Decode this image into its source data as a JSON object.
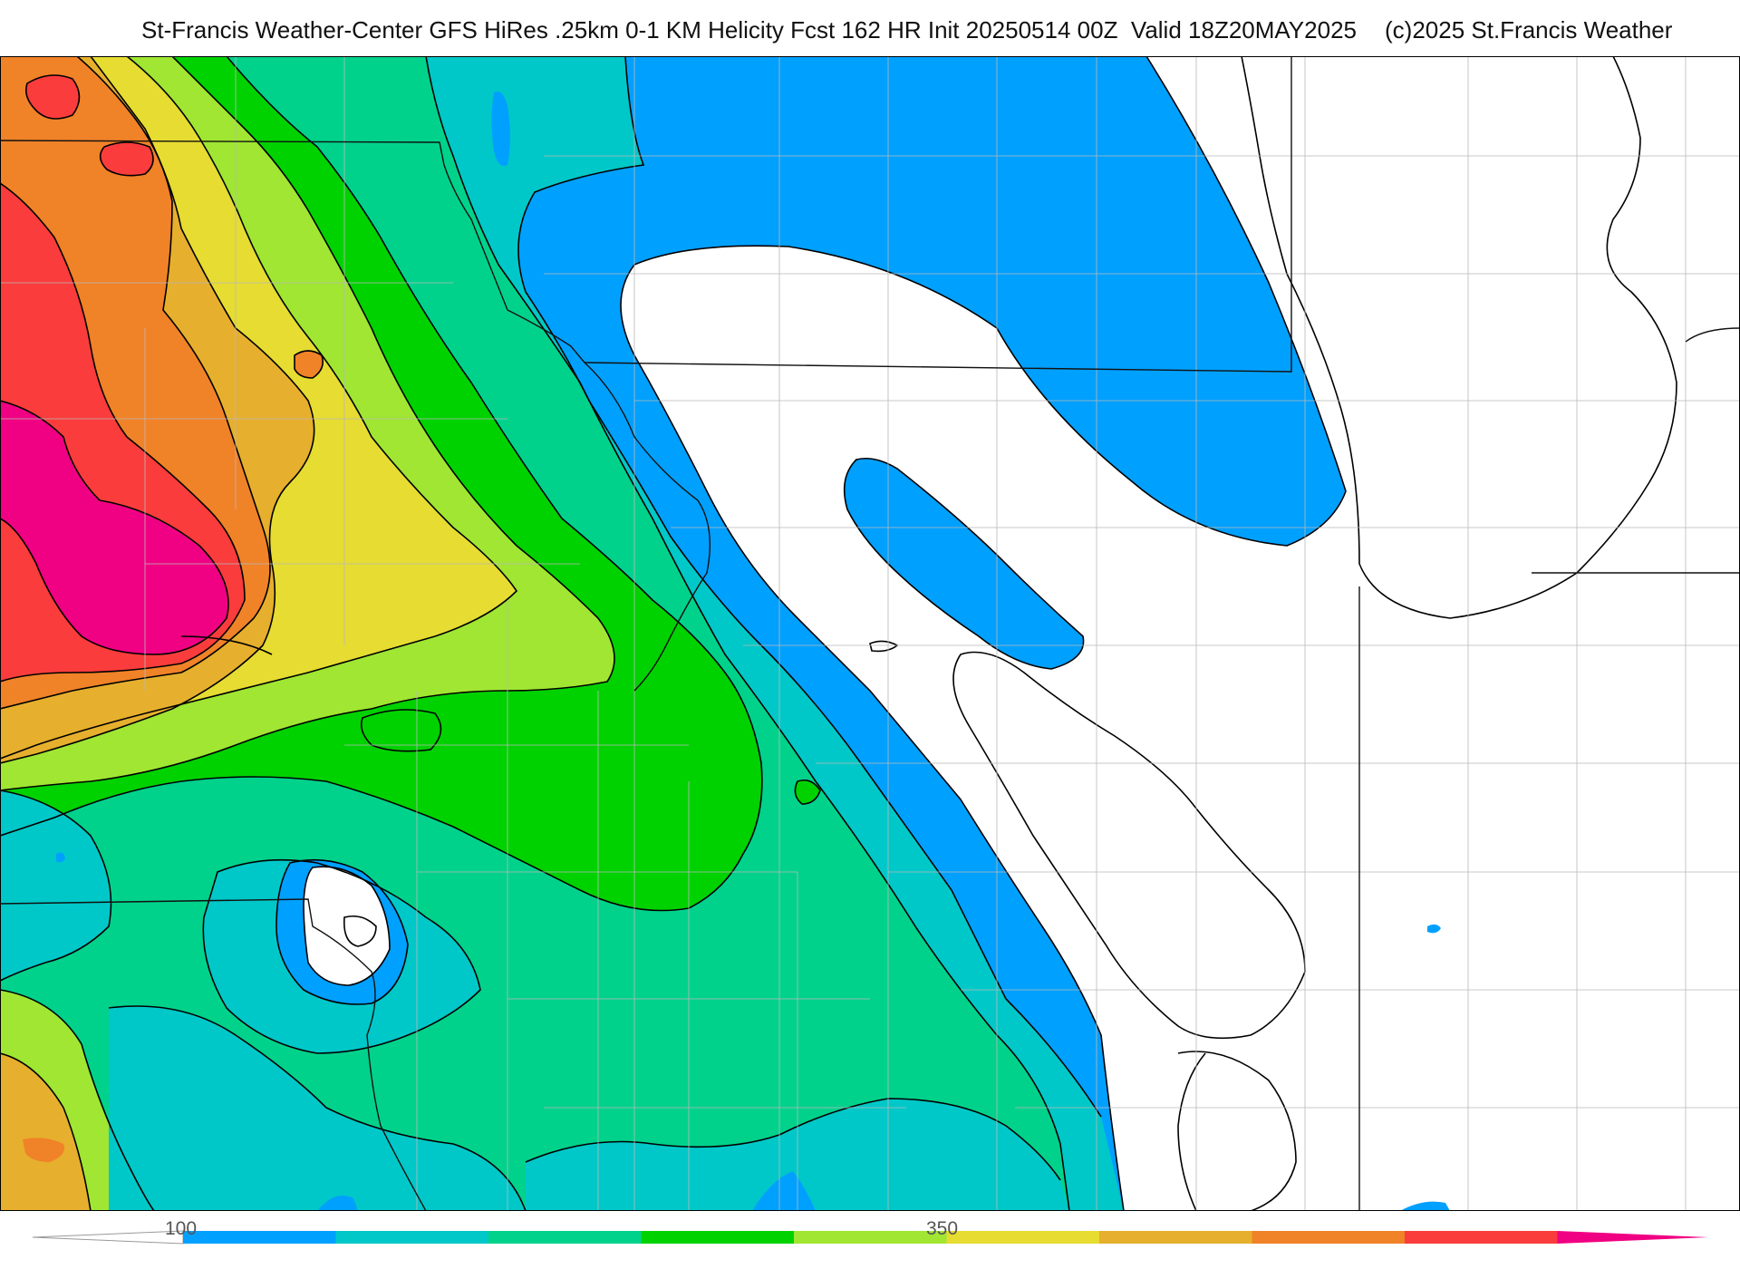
{
  "header": {
    "title": "St-Francis Weather-Center GFS HiRes .25km 0-1 KM Helicity Fcst 162 HR Init 20250514 00Z  Valid 18Z20MAY2025",
    "copyright": "(c)2025 St.Francis Weather"
  },
  "map": {
    "field": "0-1 KM Helicity",
    "shading_colors": [
      "#ffffff",
      "#00a0ff",
      "#00c8c8",
      "#00d28c",
      "#00d200",
      "#a0e632",
      "#e6dc32",
      "#e6af2d",
      "#f08228",
      "#fa3c3c",
      "#f00082"
    ]
  },
  "colorbar": {
    "tick_labels": [
      {
        "value": 100,
        "label": "100"
      },
      {
        "value": 350,
        "label": "350"
      }
    ],
    "colors": [
      "#00a0ff",
      "#00c8c8",
      "#00d28c",
      "#00d200",
      "#a0e632",
      "#e6dc32",
      "#e6af2d",
      "#f08228",
      "#fa3c3c",
      "#f00082"
    ]
  }
}
